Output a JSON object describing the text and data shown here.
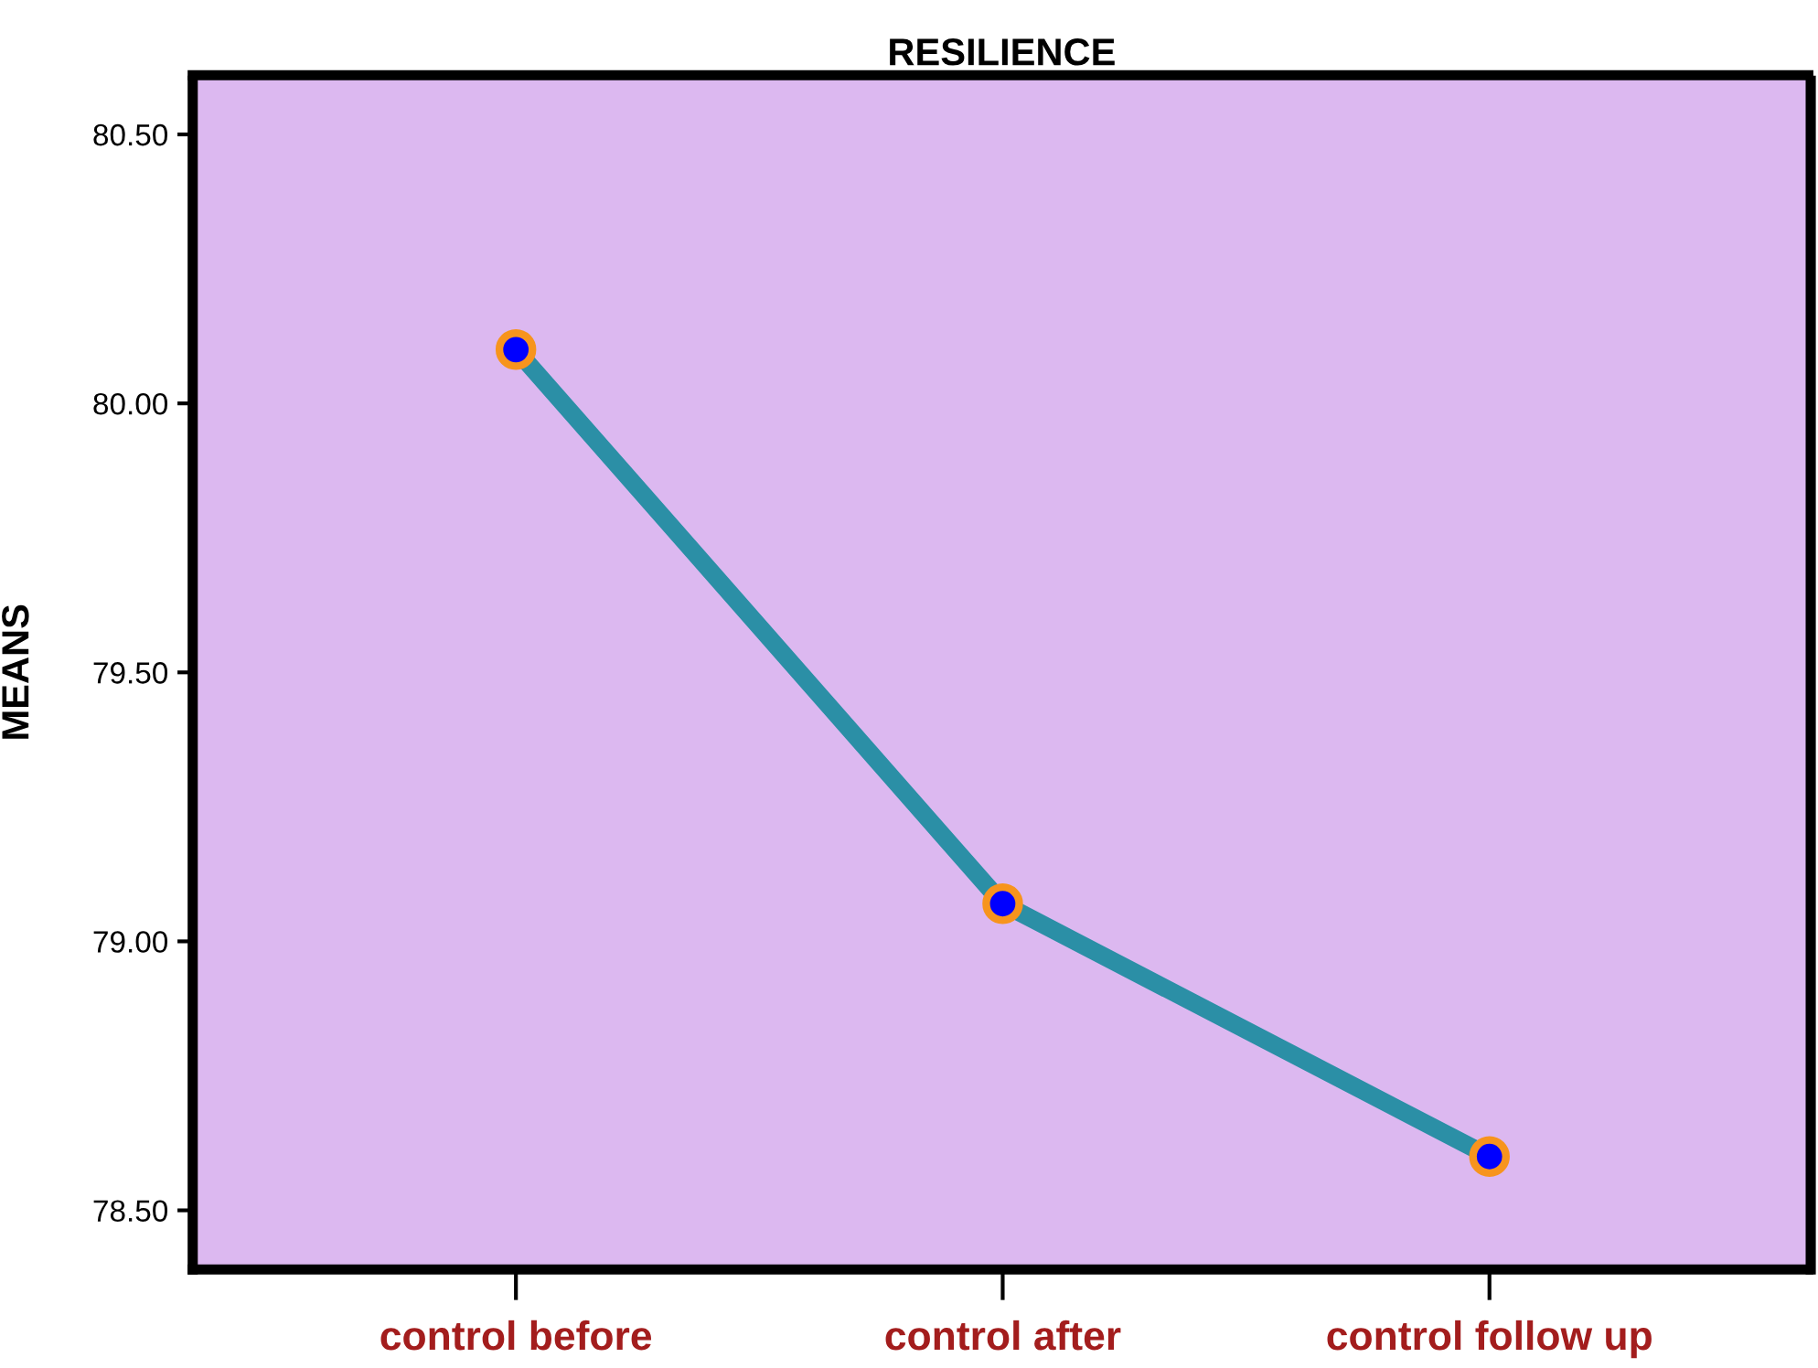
{
  "chart_data": {
    "type": "line",
    "title": "RESILIENCE",
    "ylabel": "MEANS",
    "categories": [
      "control before",
      "control after",
      "control follow up"
    ],
    "series": [
      {
        "color": "#2b8fa6",
        "values": [
          80.1,
          79.07,
          78.6
        ]
      }
    ],
    "marker": "circle",
    "line_style": "solid",
    "grid": false,
    "legend": false,
    "ylim": [
      78.39,
      80.61
    ],
    "yticks": [
      {
        "value": 78.5,
        "label": "78.50"
      },
      {
        "value": 79.0,
        "label": "79.00"
      },
      {
        "value": 79.5,
        "label": "79.50"
      },
      {
        "value": 80.0,
        "label": "80.00"
      },
      {
        "value": 80.5,
        "label": "80.50"
      }
    ]
  }
}
